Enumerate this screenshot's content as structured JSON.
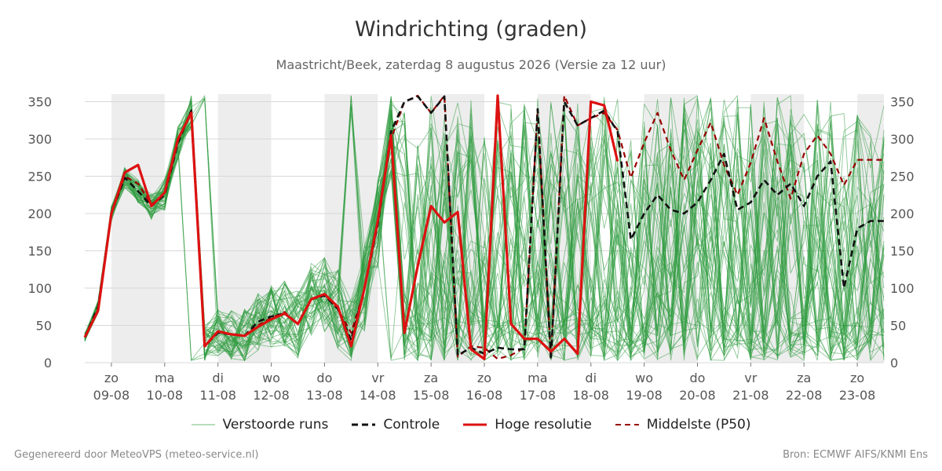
{
  "chart_data": {
    "type": "line",
    "title": "Windrichting (graden)",
    "subtitle": "Maastricht/Beek, zaterdag  8 augustus 2026 (Versie za 12 uur)",
    "ylim": [
      0,
      360
    ],
    "yticks": [
      0,
      50,
      100,
      150,
      200,
      250,
      300,
      350
    ],
    "grid": true,
    "legend_position": "bottom",
    "days": [
      {
        "day": "zo",
        "date": "09-08"
      },
      {
        "day": "ma",
        "date": "10-08"
      },
      {
        "day": "di",
        "date": "11-08"
      },
      {
        "day": "wo",
        "date": "12-08"
      },
      {
        "day": "do",
        "date": "13-08"
      },
      {
        "day": "vr",
        "date": "14-08"
      },
      {
        "day": "za",
        "date": "15-08"
      },
      {
        "day": "zo",
        "date": "16-08"
      },
      {
        "day": "ma",
        "date": "17-08"
      },
      {
        "day": "di",
        "date": "18-08"
      },
      {
        "day": "wo",
        "date": "19-08"
      },
      {
        "day": "do",
        "date": "20-08"
      },
      {
        "day": "vr",
        "date": "21-08"
      },
      {
        "day": "za",
        "date": "22-08"
      },
      {
        "day": "zo",
        "date": "23-08"
      }
    ],
    "x_start": "2026-08-08T12:00",
    "x_end": "2026-08-23T12:00",
    "series": [
      {
        "name": "Controle",
        "color": "#111111",
        "style": "dashed",
        "x": [
          "2026-08-08T12:00",
          "2026-08-08T18:00",
          "2026-08-09T00:00",
          "2026-08-09T06:00",
          "2026-08-09T12:00",
          "2026-08-09T18:00",
          "2026-08-10T00:00",
          "2026-08-10T06:00",
          "2026-08-10T12:00",
          "2026-08-10T18:00",
          "2026-08-11T00:00",
          "2026-08-11T06:00",
          "2026-08-11T12:00",
          "2026-08-11T18:00",
          "2026-08-12T00:00",
          "2026-08-12T06:00",
          "2026-08-12T12:00",
          "2026-08-12T18:00",
          "2026-08-13T00:00",
          "2026-08-13T06:00",
          "2026-08-13T12:00",
          "2026-08-13T18:00",
          "2026-08-14T00:00",
          "2026-08-14T06:00",
          "2026-08-14T12:00",
          "2026-08-14T18:00",
          "2026-08-15T00:00",
          "2026-08-15T06:00",
          "2026-08-15T12:00",
          "2026-08-15T18:00",
          "2026-08-16T00:00",
          "2026-08-16T06:00",
          "2026-08-16T12:00",
          "2026-08-16T18:00",
          "2026-08-17T00:00",
          "2026-08-17T06:00",
          "2026-08-17T12:00",
          "2026-08-17T18:00",
          "2026-08-18T00:00",
          "2026-08-18T06:00",
          "2026-08-18T12:00",
          "2026-08-18T18:00",
          "2026-08-19T00:00",
          "2026-08-19T06:00",
          "2026-08-19T12:00",
          "2026-08-19T18:00",
          "2026-08-20T00:00",
          "2026-08-20T06:00",
          "2026-08-20T12:00",
          "2026-08-20T18:00",
          "2026-08-21T00:00",
          "2026-08-21T06:00",
          "2026-08-21T12:00",
          "2026-08-21T18:00",
          "2026-08-22T00:00",
          "2026-08-22T06:00",
          "2026-08-22T12:00",
          "2026-08-22T18:00",
          "2026-08-23T00:00",
          "2026-08-23T06:00",
          "2026-08-23T12:00"
        ],
        "values": [
          34,
          75,
          200,
          248,
          230,
          210,
          225,
          295,
          338,
          22,
          40,
          38,
          36,
          55,
          62,
          66,
          52,
          85,
          90,
          72,
          30,
          100,
          185,
          310,
          350,
          357,
          335,
          357,
          10,
          20,
          12,
          20,
          18,
          18,
          340,
          5,
          350,
          318,
          328,
          338,
          310,
          165,
          200,
          225,
          205,
          200,
          215,
          245,
          280,
          205,
          215,
          245,
          225,
          240,
          210,
          250,
          270,
          100,
          180,
          190,
          190
        ]
      },
      {
        "name": "Hoge resolutie",
        "color": "#dd1111",
        "style": "solid",
        "x": [
          "2026-08-08T12:00",
          "2026-08-08T18:00",
          "2026-08-09T00:00",
          "2026-08-09T06:00",
          "2026-08-09T12:00",
          "2026-08-09T18:00",
          "2026-08-10T00:00",
          "2026-08-10T06:00",
          "2026-08-10T12:00",
          "2026-08-10T18:00",
          "2026-08-11T00:00",
          "2026-08-11T06:00",
          "2026-08-11T12:00",
          "2026-08-11T18:00",
          "2026-08-12T00:00",
          "2026-08-12T06:00",
          "2026-08-12T12:00",
          "2026-08-12T18:00",
          "2026-08-13T00:00",
          "2026-08-13T06:00",
          "2026-08-13T12:00",
          "2026-08-13T18:00",
          "2026-08-14T00:00",
          "2026-08-14T06:00",
          "2026-08-14T12:00",
          "2026-08-14T18:00",
          "2026-08-15T00:00",
          "2026-08-15T06:00",
          "2026-08-15T12:00",
          "2026-08-15T18:00",
          "2026-08-16T00:00",
          "2026-08-16T06:00",
          "2026-08-16T12:00",
          "2026-08-16T18:00",
          "2026-08-17T00:00",
          "2026-08-17T06:00",
          "2026-08-17T12:00",
          "2026-08-17T18:00",
          "2026-08-18T00:00",
          "2026-08-18T06:00",
          "2026-08-18T12:00"
        ],
        "values": [
          34,
          70,
          200,
          255,
          265,
          210,
          228,
          300,
          335,
          22,
          42,
          38,
          36,
          48,
          58,
          66,
          52,
          85,
          92,
          75,
          22,
          100,
          190,
          305,
          40,
          130,
          210,
          188,
          202,
          18,
          5,
          358,
          52,
          32,
          32,
          15,
          32,
          12,
          350,
          345,
          270
        ]
      },
      {
        "name": "Middelste (P50)",
        "color": "#990000",
        "style": "dashed",
        "x": [
          "2026-08-08T12:00",
          "2026-08-08T18:00",
          "2026-08-09T00:00",
          "2026-08-09T06:00",
          "2026-08-09T12:00",
          "2026-08-09T18:00",
          "2026-08-10T00:00",
          "2026-08-10T06:00",
          "2026-08-10T12:00",
          "2026-08-10T18:00",
          "2026-08-11T00:00",
          "2026-08-11T06:00",
          "2026-08-11T12:00",
          "2026-08-11T18:00",
          "2026-08-12T00:00",
          "2026-08-12T06:00",
          "2026-08-12T12:00",
          "2026-08-12T18:00",
          "2026-08-13T00:00",
          "2026-08-13T06:00",
          "2026-08-13T12:00",
          "2026-08-13T18:00",
          "2026-08-14T00:00",
          "2026-08-14T06:00",
          "2026-08-14T12:00",
          "2026-08-14T18:00",
          "2026-08-15T00:00",
          "2026-08-15T06:00",
          "2026-08-15T12:00",
          "2026-08-15T18:00",
          "2026-08-16T00:00",
          "2026-08-16T06:00",
          "2026-08-16T12:00",
          "2026-08-16T18:00",
          "2026-08-17T00:00",
          "2026-08-17T06:00",
          "2026-08-17T12:00",
          "2026-08-17T18:00",
          "2026-08-18T00:00",
          "2026-08-18T06:00",
          "2026-08-18T12:00",
          "2026-08-18T18:00",
          "2026-08-19T00:00",
          "2026-08-19T06:00",
          "2026-08-19T12:00",
          "2026-08-19T18:00",
          "2026-08-20T00:00",
          "2026-08-20T06:00",
          "2026-08-20T12:00",
          "2026-08-20T18:00",
          "2026-08-21T00:00",
          "2026-08-21T06:00",
          "2026-08-21T12:00",
          "2026-08-21T18:00",
          "2026-08-22T00:00",
          "2026-08-22T06:00",
          "2026-08-22T12:00",
          "2026-08-22T18:00",
          "2026-08-23T00:00",
          "2026-08-23T06:00",
          "2026-08-23T12:00"
        ],
        "values": [
          34,
          72,
          200,
          250,
          240,
          212,
          226,
          298,
          338,
          22,
          42,
          38,
          36,
          50,
          60,
          68,
          52,
          85,
          90,
          72,
          40,
          98,
          190,
          300,
          350,
          358,
          335,
          358,
          8,
          22,
          20,
          5,
          10,
          20,
          340,
          5,
          358,
          318,
          328,
          335,
          312,
          248,
          295,
          335,
          285,
          245,
          285,
          322,
          265,
          225,
          268,
          328,
          270,
          220,
          280,
          305,
          280,
          238,
          272,
          272,
          272
        ]
      }
    ],
    "ensemble": {
      "name": "Verstoorde runs",
      "color": "#2e9a3e",
      "members": 50
    }
  },
  "legend": {
    "ensemble_label": "Verstoorde runs",
    "control_label": "Controle",
    "hires_label": "Hoge resolutie",
    "median_label": "Middelste (P50)"
  },
  "footer": {
    "left": "Gegenereerd door MeteoVPS (meteo-service.nl)",
    "right": "Bron: ECMWF AIFS/KNMI Ens"
  }
}
